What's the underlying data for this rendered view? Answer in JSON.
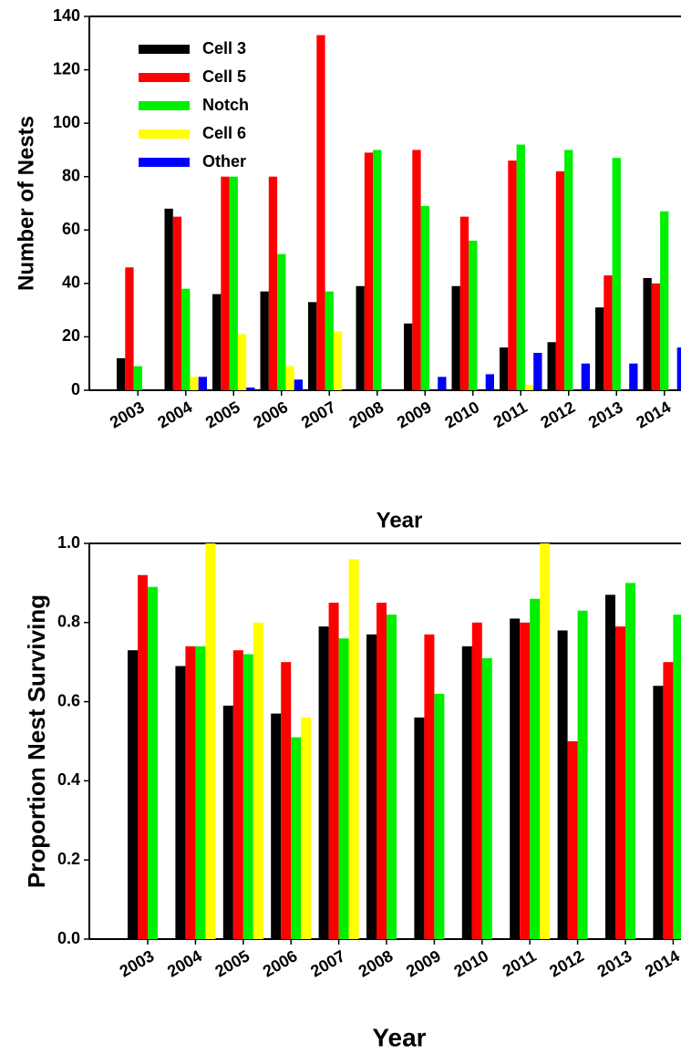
{
  "chart_data": [
    {
      "type": "bar",
      "ylabel": "Number of Nests",
      "xlabel": "Year",
      "categories": [
        "2003",
        "2004",
        "2005",
        "2006",
        "2007",
        "2008",
        "2009",
        "2010",
        "2011",
        "2012",
        "2013",
        "2014"
      ],
      "series": [
        {
          "name": "Cell 3",
          "color": "#000000",
          "values": [
            12,
            68,
            36,
            37,
            33,
            39,
            25,
            39,
            16,
            18,
            31,
            42
          ]
        },
        {
          "name": "Cell 5",
          "color": "#ff0000",
          "values": [
            46,
            65,
            80,
            80,
            133,
            89,
            90,
            65,
            86,
            82,
            43,
            40
          ]
        },
        {
          "name": "Notch",
          "color": "#00ee00",
          "values": [
            9,
            38,
            80,
            51,
            37,
            90,
            69,
            56,
            92,
            90,
            87,
            67
          ]
        },
        {
          "name": "Cell 6",
          "color": "#ffff00",
          "values": [
            0,
            5,
            21,
            9,
            22,
            0,
            0,
            0,
            2,
            0,
            0,
            0
          ]
        },
        {
          "name": "Other",
          "color": "#0000ff",
          "values": [
            0,
            5,
            1,
            4,
            0,
            0,
            5,
            6,
            14,
            10,
            10,
            16
          ]
        }
      ],
      "ylim": [
        0,
        140
      ],
      "yticks": [
        0,
        20,
        40,
        60,
        80,
        100,
        120,
        140
      ],
      "legend": "upper left"
    },
    {
      "type": "bar",
      "ylabel": "Proportion Nest Surviving",
      "xlabel": "Year",
      "categories": [
        "2003",
        "2004",
        "2005",
        "2006",
        "2007",
        "2008",
        "2009",
        "2010",
        "2011",
        "2012",
        "2013",
        "2014"
      ],
      "series": [
        {
          "color": "#000000",
          "values": [
            0.73,
            0.69,
            0.59,
            0.57,
            0.79,
            0.77,
            0.56,
            0.74,
            0.81,
            0.78,
            0.87,
            0.64
          ]
        },
        {
          "color": "#ff0000",
          "values": [
            0.92,
            0.74,
            0.73,
            0.7,
            0.85,
            0.85,
            0.77,
            0.8,
            0.8,
            0.5,
            0.79,
            0.7
          ]
        },
        {
          "color": "#00ee00",
          "values": [
            0.89,
            0.74,
            0.72,
            0.51,
            0.76,
            0.82,
            0.62,
            0.71,
            0.86,
            0.83,
            0.9,
            0.82
          ]
        },
        {
          "color": "#ffff00",
          "values": [
            null,
            1.0,
            0.8,
            0.56,
            0.96,
            null,
            null,
            null,
            1.0,
            null,
            null,
            null
          ]
        }
      ],
      "ylim": [
        0,
        1
      ],
      "yticks": [
        {
          "value": 0,
          "label": "0.0"
        },
        0.2,
        0.4,
        0.6,
        0.8,
        {
          "value": 1,
          "label": "1.0"
        }
      ]
    }
  ]
}
